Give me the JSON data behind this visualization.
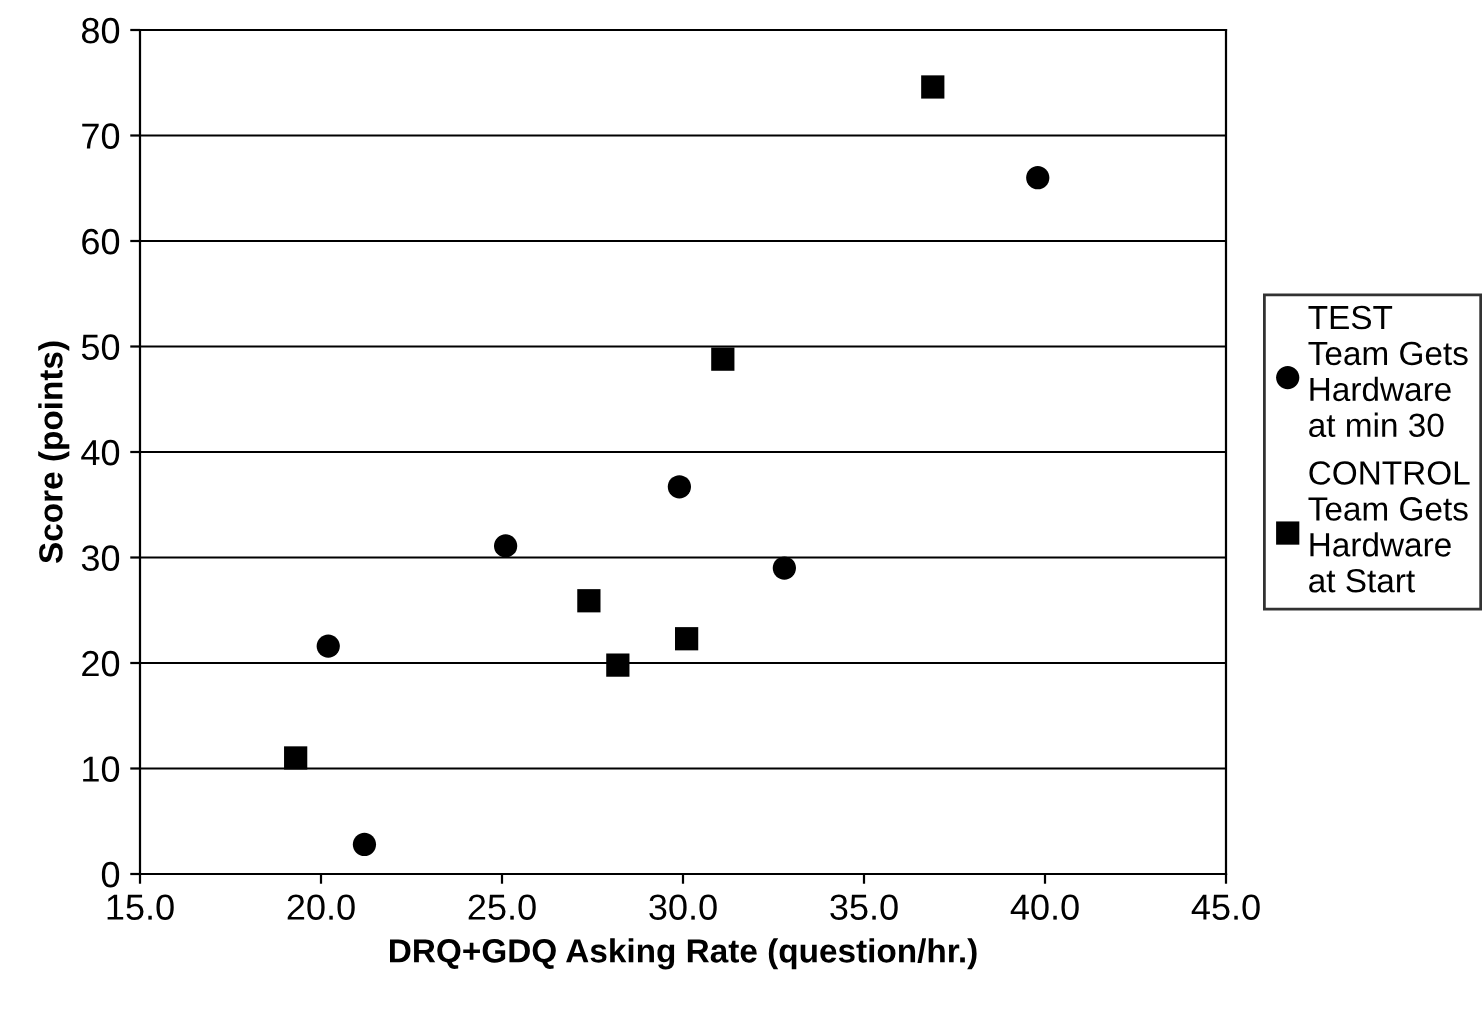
{
  "chart_data": {
    "type": "scatter",
    "xlabel": "DRQ+GDQ Asking Rate (question/hr.)",
    "ylabel": "Score (points)",
    "xlim": [
      15,
      45
    ],
    "xticks": [
      {
        "value": 15,
        "label": "15.0"
      },
      {
        "value": 20,
        "label": "20.0"
      },
      {
        "value": 25,
        "label": "25.0"
      },
      {
        "value": 30,
        "label": "30.0"
      },
      {
        "value": 35,
        "label": "35.0"
      },
      {
        "value": 40,
        "label": "40.0"
      },
      {
        "value": 45,
        "label": "45.0"
      }
    ],
    "ylim": [
      0,
      80
    ],
    "yticks": [
      0,
      10,
      20,
      30,
      40,
      50,
      60,
      70,
      80
    ],
    "grid": "y",
    "legend": "right",
    "series": [
      {
        "name": "TEST\nTeam Gets\nHardware\nat min 30",
        "color": "#000000",
        "marker": "circle",
        "x": [
          20.2,
          21.2,
          25.1,
          29.9,
          32.8,
          39.8
        ],
        "values": [
          21.6,
          2.8,
          31.1,
          36.7,
          29.0,
          66.0
        ]
      },
      {
        "name": "CONTROL\nTeam Gets\nHardware\nat Start",
        "color": "#000000",
        "marker": "square",
        "x": [
          19.3,
          27.4,
          28.2,
          30.1,
          31.1,
          36.9
        ],
        "values": [
          11.0,
          25.9,
          19.8,
          22.3,
          48.8,
          74.6
        ]
      }
    ]
  }
}
